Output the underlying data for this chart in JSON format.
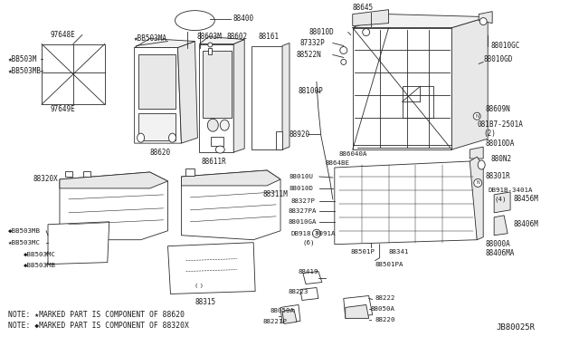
{
  "background_color": "#ffffff",
  "diagram_ref": "JB80025R",
  "note1": "NOTE: ★MARKED PART IS COMPONENT OF 88620",
  "note2": "NOTE: ◆MARKED PART IS COMPONENT OF 88320X",
  "line_color": "#2a2a2a",
  "text_color": "#1a1a1a",
  "font_size": 5.5,
  "note_font_size": 5.8,
  "ref_font_size": 6.5,
  "lw": 0.6
}
